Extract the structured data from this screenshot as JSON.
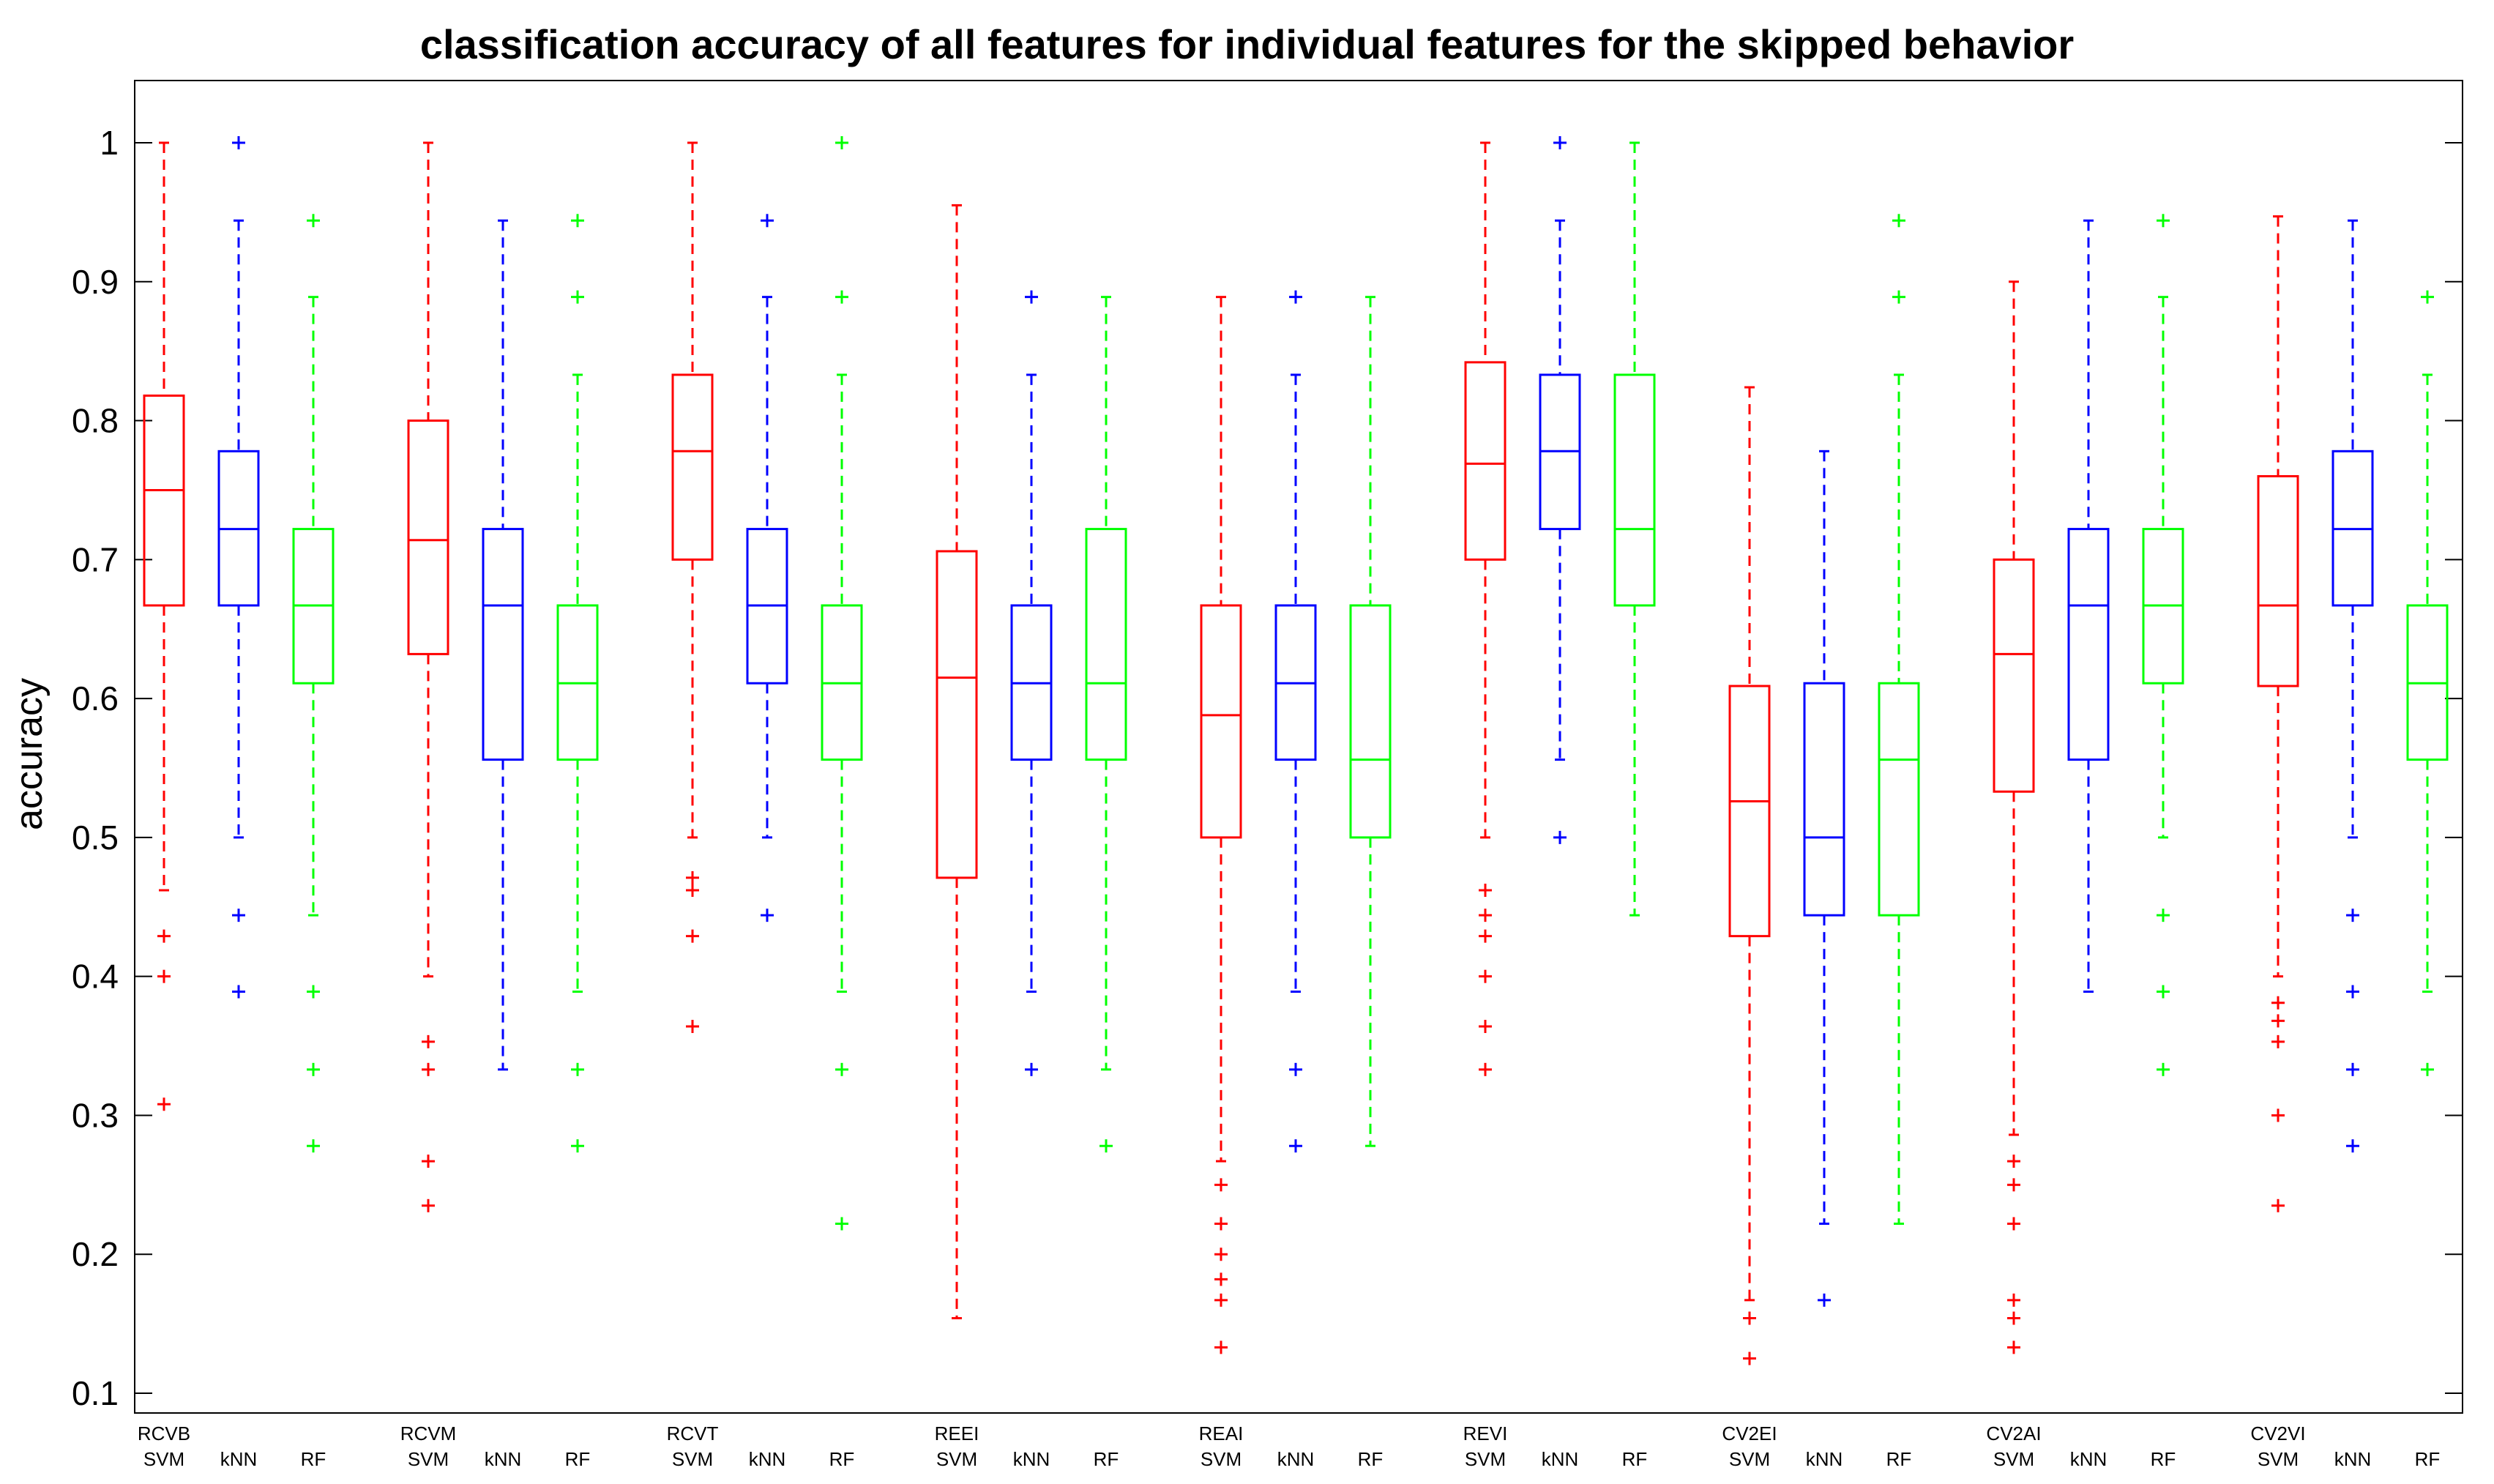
{
  "chart_data": {
    "type": "box",
    "title": "classification accuracy of all features for individual features for the skipped behavior",
    "xlabel": "",
    "ylabel": "accuracy",
    "ylim": [
      0.08,
      1.05
    ],
    "yticks": [
      0.1,
      0.2,
      0.3,
      0.4,
      0.5,
      0.6,
      0.7,
      0.8,
      0.9,
      1
    ],
    "ytick_labels": [
      "0.1",
      "0.2",
      "0.3",
      "0.4",
      "0.5",
      "0.6",
      "0.7",
      "0.8",
      "0.9",
      "1"
    ],
    "grid": false,
    "colors": {
      "SVM": "#ff0000",
      "kNN": "#0000ff",
      "RF": "#00ff00"
    },
    "groups": [
      {
        "feature": "RCVB",
        "boxes": [
          {
            "method": "SVM",
            "whisker_low": 0.462,
            "q1": 0.667,
            "median": 0.75,
            "q3": 0.818,
            "whisker_high": 1.0,
            "outliers": [
              0.429,
              0.4,
              0.308
            ]
          },
          {
            "method": "kNN",
            "whisker_low": 0.5,
            "q1": 0.667,
            "median": 0.722,
            "q3": 0.778,
            "whisker_high": 0.944,
            "outliers": [
              1.0,
              0.444,
              0.389
            ]
          },
          {
            "method": "RF",
            "whisker_low": 0.444,
            "q1": 0.611,
            "median": 0.667,
            "q3": 0.722,
            "whisker_high": 0.889,
            "outliers": [
              0.944,
              0.389,
              0.333,
              0.278
            ]
          }
        ]
      },
      {
        "feature": "RCVM",
        "boxes": [
          {
            "method": "SVM",
            "whisker_low": 0.4,
            "q1": 0.632,
            "median": 0.714,
            "q3": 0.8,
            "whisker_high": 1.0,
            "outliers": [
              0.353,
              0.333,
              0.267,
              0.235
            ]
          },
          {
            "method": "kNN",
            "whisker_low": 0.333,
            "q1": 0.556,
            "median": 0.667,
            "q3": 0.722,
            "whisker_high": 0.944,
            "outliers": []
          },
          {
            "method": "RF",
            "whisker_low": 0.389,
            "q1": 0.556,
            "median": 0.611,
            "q3": 0.667,
            "whisker_high": 0.833,
            "outliers": [
              0.944,
              0.889,
              0.333,
              0.278
            ]
          }
        ]
      },
      {
        "feature": "RCVT",
        "boxes": [
          {
            "method": "SVM",
            "whisker_low": 0.5,
            "q1": 0.7,
            "median": 0.778,
            "q3": 0.833,
            "whisker_high": 1.0,
            "outliers": [
              0.471,
              0.462,
              0.429,
              0.364
            ]
          },
          {
            "method": "kNN",
            "whisker_low": 0.5,
            "q1": 0.611,
            "median": 0.667,
            "q3": 0.722,
            "whisker_high": 0.889,
            "outliers": [
              0.944,
              0.444
            ]
          },
          {
            "method": "RF",
            "whisker_low": 0.389,
            "q1": 0.556,
            "median": 0.611,
            "q3": 0.667,
            "whisker_high": 0.833,
            "outliers": [
              1.0,
              0.889,
              0.333,
              0.222
            ]
          }
        ]
      },
      {
        "feature": "REEI",
        "boxes": [
          {
            "method": "SVM",
            "whisker_low": 0.154,
            "q1": 0.471,
            "median": 0.615,
            "q3": 0.706,
            "whisker_high": 0.955,
            "outliers": []
          },
          {
            "method": "kNN",
            "whisker_low": 0.389,
            "q1": 0.556,
            "median": 0.611,
            "q3": 0.667,
            "whisker_high": 0.833,
            "outliers": [
              0.889,
              0.333
            ]
          },
          {
            "method": "RF",
            "whisker_low": 0.333,
            "q1": 0.556,
            "median": 0.611,
            "q3": 0.722,
            "whisker_high": 0.889,
            "outliers": [
              0.278
            ]
          }
        ]
      },
      {
        "feature": "REAI",
        "boxes": [
          {
            "method": "SVM",
            "whisker_low": 0.267,
            "q1": 0.5,
            "median": 0.588,
            "q3": 0.667,
            "whisker_high": 0.889,
            "outliers": [
              0.25,
              0.222,
              0.2,
              0.182,
              0.167,
              0.133
            ]
          },
          {
            "method": "kNN",
            "whisker_low": 0.389,
            "q1": 0.556,
            "median": 0.611,
            "q3": 0.667,
            "whisker_high": 0.833,
            "outliers": [
              0.889,
              0.333,
              0.278
            ]
          },
          {
            "method": "RF",
            "whisker_low": 0.278,
            "q1": 0.5,
            "median": 0.556,
            "q3": 0.667,
            "whisker_high": 0.889,
            "outliers": []
          }
        ]
      },
      {
        "feature": "REVI",
        "boxes": [
          {
            "method": "SVM",
            "whisker_low": 0.5,
            "q1": 0.7,
            "median": 0.769,
            "q3": 0.842,
            "whisker_high": 1.0,
            "outliers": [
              0.462,
              0.444,
              0.429,
              0.4,
              0.364,
              0.333
            ]
          },
          {
            "method": "kNN",
            "whisker_low": 0.556,
            "q1": 0.722,
            "median": 0.778,
            "q3": 0.833,
            "whisker_high": 0.944,
            "outliers": [
              1.0,
              0.5
            ]
          },
          {
            "method": "RF",
            "whisker_low": 0.444,
            "q1": 0.667,
            "median": 0.722,
            "q3": 0.833,
            "whisker_high": 1.0,
            "outliers": []
          }
        ]
      },
      {
        "feature": "CV2EI",
        "boxes": [
          {
            "method": "SVM",
            "whisker_low": 0.167,
            "q1": 0.429,
            "median": 0.526,
            "q3": 0.609,
            "whisker_high": 0.824,
            "outliers": [
              0.154,
              0.125
            ]
          },
          {
            "method": "kNN",
            "whisker_low": 0.222,
            "q1": 0.444,
            "median": 0.5,
            "q3": 0.611,
            "whisker_high": 0.778,
            "outliers": [
              0.167
            ]
          },
          {
            "method": "RF",
            "whisker_low": 0.222,
            "q1": 0.444,
            "median": 0.556,
            "q3": 0.611,
            "whisker_high": 0.833,
            "outliers": [
              0.944,
              0.889
            ]
          }
        ]
      },
      {
        "feature": "CV2AI",
        "boxes": [
          {
            "method": "SVM",
            "whisker_low": 0.286,
            "q1": 0.533,
            "median": 0.632,
            "q3": 0.7,
            "whisker_high": 0.9,
            "outliers": [
              0.267,
              0.25,
              0.222,
              0.167,
              0.154,
              0.133
            ]
          },
          {
            "method": "kNN",
            "whisker_low": 0.389,
            "q1": 0.556,
            "median": 0.667,
            "q3": 0.722,
            "whisker_high": 0.944,
            "outliers": []
          },
          {
            "method": "RF",
            "whisker_low": 0.5,
            "q1": 0.611,
            "median": 0.667,
            "q3": 0.722,
            "whisker_high": 0.889,
            "outliers": [
              0.944,
              0.444,
              0.389,
              0.333
            ]
          }
        ]
      },
      {
        "feature": "CV2VI",
        "boxes": [
          {
            "method": "SVM",
            "whisker_low": 0.4,
            "q1": 0.609,
            "median": 0.667,
            "q3": 0.76,
            "whisker_high": 0.947,
            "outliers": [
              0.381,
              0.368,
              0.353,
              0.3,
              0.235
            ]
          },
          {
            "method": "kNN",
            "whisker_low": 0.5,
            "q1": 0.667,
            "median": 0.722,
            "q3": 0.778,
            "whisker_high": 0.944,
            "outliers": [
              0.444,
              0.389,
              0.333,
              0.278
            ]
          },
          {
            "method": "RF",
            "whisker_low": 0.389,
            "q1": 0.556,
            "median": 0.611,
            "q3": 0.667,
            "whisker_high": 0.833,
            "outliers": [
              0.889,
              0.333
            ]
          }
        ]
      }
    ]
  }
}
